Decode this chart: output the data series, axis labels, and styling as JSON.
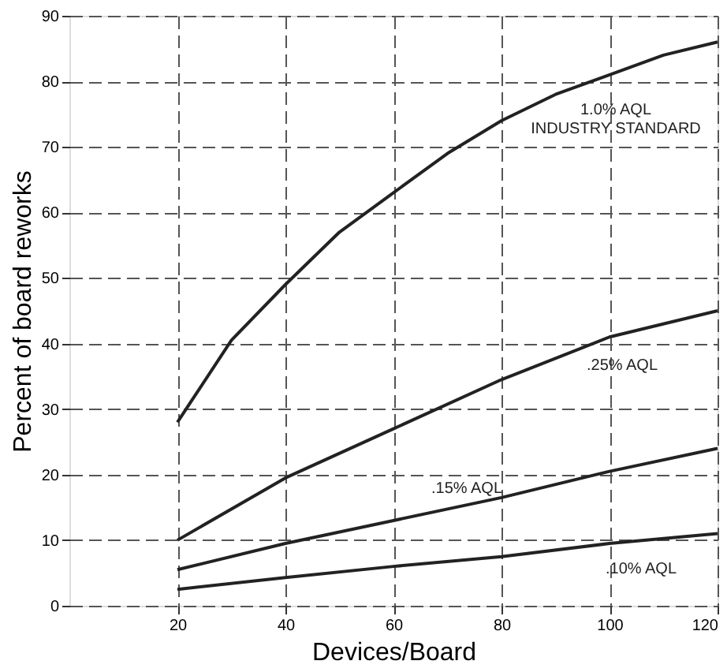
{
  "chart_data": {
    "type": "line",
    "xlabel": "Devices/Board",
    "ylabel": "Percent of board reworks",
    "x": [
      20,
      30,
      40,
      50,
      60,
      70,
      80,
      90,
      100,
      110,
      120
    ],
    "series": [
      {
        "name": "1.0% AQL\nINDUSTRY STANDARD",
        "color": "#222222",
        "values": [
          28,
          40.5,
          49,
          57,
          63,
          69,
          74,
          78,
          81,
          84,
          86
        ]
      },
      {
        "name": ".25% AQL",
        "color": "#222222",
        "x": [
          20,
          40,
          60,
          80,
          100,
          120
        ],
        "values": [
          10,
          19.5,
          27,
          34.5,
          41,
          45
        ]
      },
      {
        "name": ".15% AQL",
        "color": "#222222",
        "x": [
          20,
          40,
          60,
          80,
          100,
          120
        ],
        "values": [
          5.5,
          9.5,
          13,
          16.5,
          20.5,
          24
        ]
      },
      {
        "name": ".10% AQL",
        "color": "#222222",
        "x": [
          20,
          40,
          60,
          80,
          100,
          120
        ],
        "values": [
          2.5,
          4.3,
          6,
          7.5,
          9.5,
          11
        ]
      }
    ],
    "xlim": [
      0,
      120
    ],
    "ylim": [
      0,
      90
    ],
    "xticks": [
      20,
      40,
      60,
      80,
      100,
      120
    ],
    "yticks": [
      0,
      10,
      20,
      30,
      40,
      50,
      60,
      70,
      80,
      90
    ],
    "grid": true,
    "line_style": "solid"
  }
}
